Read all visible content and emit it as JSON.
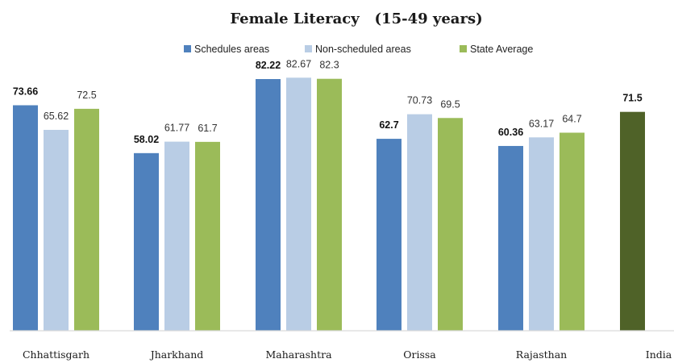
{
  "chart_data": {
    "type": "bar",
    "title": "Female Literacy   (15-49 years)",
    "categories": [
      "Chhattisgarh",
      "Jharkhand",
      "Maharashtra",
      "Orissa",
      "Rajasthan",
      "India"
    ],
    "series": [
      {
        "name": "Schedules areas",
        "color": "#4f81bd",
        "values": [
          73.66,
          58.02,
          82.22,
          62.7,
          60.36,
          null
        ],
        "labels": [
          "73.66",
          "58.02",
          "82.22",
          "62.7",
          "60.36",
          ""
        ]
      },
      {
        "name": "Non-scheduled areas",
        "color": "#b9cde5",
        "values": [
          65.62,
          61.77,
          82.67,
          70.73,
          63.17,
          null
        ],
        "labels": [
          "65.62",
          "61.77",
          "82.67",
          "70.73",
          "63.17",
          ""
        ]
      },
      {
        "name": "State Average",
        "color": "#9bbb59",
        "values": [
          72.5,
          61.7,
          82.3,
          69.5,
          64.7,
          null
        ],
        "labels": [
          "72.5",
          "61.7",
          "82.3",
          "69.5",
          "64.7",
          ""
        ]
      }
    ],
    "india": {
      "value": 71.5,
      "label": "71.5",
      "color": "#4f6228"
    },
    "ylim": [
      0,
      84
    ],
    "grid": false,
    "legend": "top-center",
    "xlabel": "",
    "ylabel": ""
  }
}
